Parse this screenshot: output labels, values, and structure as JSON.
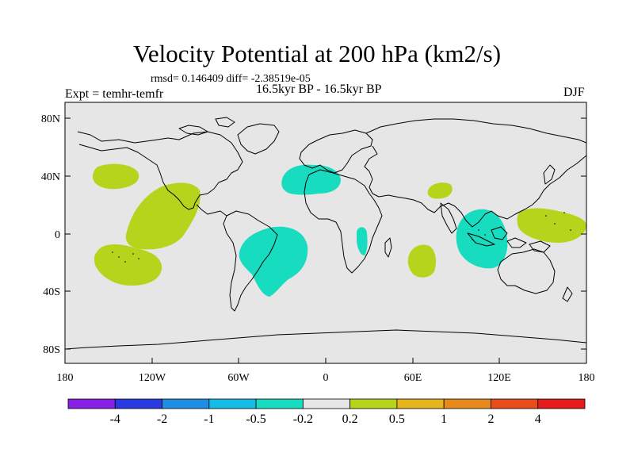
{
  "title": "Velocity Potential at 200 hPa (km2/s)",
  "stats": "rmsd= 0.146409 diff= -2.38519e-05",
  "experiment": "Expt = temhr-temfr",
  "period": "16.5kyr BP - 16.5kyr BP",
  "season": "DJF",
  "map": {
    "lat_labels": [
      "80N",
      "40N",
      "0",
      "40S",
      "80S"
    ],
    "lon_labels": [
      "180",
      "120W",
      "60W",
      "0",
      "60E",
      "120E",
      "180"
    ],
    "ocean_color": "#e6e6e6"
  },
  "colorbar": {
    "labels": [
      "-4",
      "-2",
      "-1",
      "-0.5",
      "-0.2",
      "0.2",
      "0.5",
      "1",
      "2",
      "4"
    ],
    "colors": [
      "#8a1fe6",
      "#2a3ae0",
      "#1f8fe6",
      "#14bce6",
      "#18dcc0",
      "#e6e6e6",
      "#b7d41c",
      "#e6b41c",
      "#e68a1c",
      "#e64e1c",
      "#e61c1c"
    ]
  },
  "chart_data": {
    "type": "heatmap",
    "title": "Velocity Potential at 200 hPa (km2/s)",
    "projection": "cylindrical-equidistant",
    "x_range": [
      -180,
      180
    ],
    "y_range": [
      -90,
      90
    ],
    "levels": [
      -4,
      -2,
      -1,
      -0.5,
      -0.2,
      0.2,
      0.5,
      1,
      2,
      4
    ],
    "anomaly_regions": [
      {
        "name": "North Pacific",
        "sign": "positive",
        "lon": -155,
        "lat": 38
      },
      {
        "name": "Central-East Pacific",
        "sign": "positive",
        "lon": -120,
        "lat": 5
      },
      {
        "name": "South Pacific",
        "sign": "positive",
        "lon": -145,
        "lat": -20
      },
      {
        "name": "South America / South Atlantic",
        "sign": "negative",
        "lon": -40,
        "lat": -10
      },
      {
        "name": "North Africa / Mediterranean",
        "sign": "negative",
        "lon": -5,
        "lat": 38
      },
      {
        "name": "Central Africa",
        "sign": "negative",
        "lon": 25,
        "lat": -5
      },
      {
        "name": "South Indian Ocean",
        "sign": "positive",
        "lon": 57,
        "lat": -18
      },
      {
        "name": "Arabian Peninsula",
        "sign": "positive",
        "lon": 80,
        "lat": 30
      },
      {
        "name": "Maritime Continent",
        "sign": "negative",
        "lon": 105,
        "lat": -2
      },
      {
        "name": "West Pacific",
        "sign": "positive",
        "lon": 158,
        "lat": 10
      }
    ]
  }
}
